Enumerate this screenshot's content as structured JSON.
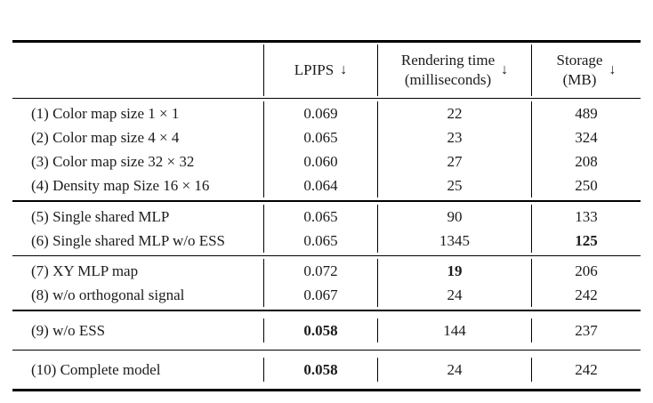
{
  "header": {
    "lpips": {
      "label": "LPIPS",
      "arrow": "↓"
    },
    "rendering": {
      "line1": "Rendering time",
      "line2": "(milliseconds)",
      "arrow": "↓"
    },
    "storage": {
      "line1": "Storage",
      "line2": "(MB)",
      "arrow": "↓"
    }
  },
  "rows": [
    {
      "label": "(1) Color map size 1 × 1",
      "lpips": "0.069",
      "time": "22",
      "storage": "489"
    },
    {
      "label": "(2) Color map size 4 × 4",
      "lpips": "0.065",
      "time": "23",
      "storage": "324"
    },
    {
      "label": "(3) Color map size 32 × 32",
      "lpips": "0.060",
      "time": "27",
      "storage": "208"
    },
    {
      "label": "(4) Density map Size 16 × 16",
      "lpips": "0.064",
      "time": "25",
      "storage": "250"
    },
    {
      "label": "(5) Single shared MLP",
      "lpips": "0.065",
      "time": "90",
      "storage": "133"
    },
    {
      "label": "(6) Single shared MLP w/o ESS",
      "lpips": "0.065",
      "time": "1345",
      "storage": "125",
      "bold": [
        "storage"
      ]
    },
    {
      "label": "(7) XY MLP map",
      "lpips": "0.072",
      "time": "19",
      "storage": "206",
      "bold": [
        "time"
      ]
    },
    {
      "label": "(8) w/o orthogonal signal",
      "lpips": "0.067",
      "time": "24",
      "storage": "242"
    },
    {
      "label": "(9) w/o ESS",
      "lpips": "0.058",
      "time": "144",
      "storage": "237",
      "bold": [
        "lpips"
      ]
    },
    {
      "label": "(10) Complete model",
      "lpips": "0.058",
      "time": "24",
      "storage": "242",
      "bold": [
        "lpips"
      ]
    }
  ],
  "colors": {
    "text": "#1b1b1b",
    "rule": "#000000",
    "background": "#ffffff"
  }
}
